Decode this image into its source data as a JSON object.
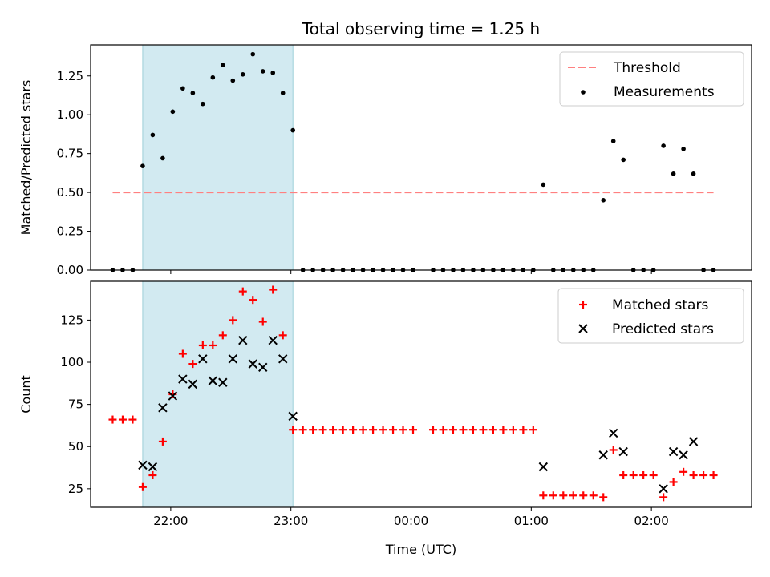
{
  "title": "Total observing time = 1.25 h",
  "colors": {
    "threshold": "#ff8080",
    "measurement": "#000000",
    "matched": "#ff0000",
    "predicted": "#000000",
    "observing_window": "#add8e6"
  },
  "chart_data": [
    {
      "type": "scatter",
      "name": "ratio-panel",
      "ylabel": "Matched/Predicted stars",
      "xlabel": "",
      "ylim": [
        0,
        1.45
      ],
      "xlim": [
        "21:20",
        "02:50"
      ],
      "yticks": [
        "0.00",
        "0.25",
        "0.50",
        "0.75",
        "1.00",
        "1.25"
      ],
      "ytick_values": [
        0,
        0.25,
        0.5,
        0.75,
        1.0,
        1.25
      ],
      "xticks": [
        "22:00",
        "23:00",
        "00:00",
        "01:00",
        "02:00"
      ],
      "xtick_labels_shown": false,
      "grid": false,
      "legend_position": "top-right",
      "shaded_interval": [
        "21:46",
        "23:01"
      ],
      "threshold": {
        "name": "Threshold",
        "style": "dashed",
        "value": 0.5,
        "x_range": [
          "21:31",
          "02:31"
        ]
      },
      "series": [
        {
          "name": "Measurements",
          "marker": "dot",
          "points": [
            [
              "21:31",
              0.0
            ],
            [
              "21:36",
              0.0
            ],
            [
              "21:41",
              0.0
            ],
            [
              "21:46",
              0.67
            ],
            [
              "21:51",
              0.87
            ],
            [
              "21:56",
              0.72
            ],
            [
              "22:01",
              1.02
            ],
            [
              "22:06",
              1.17
            ],
            [
              "22:11",
              1.14
            ],
            [
              "22:16",
              1.07
            ],
            [
              "22:21",
              1.24
            ],
            [
              "22:26",
              1.32
            ],
            [
              "22:31",
              1.22
            ],
            [
              "22:36",
              1.26
            ],
            [
              "22:41",
              1.39
            ],
            [
              "22:46",
              1.28
            ],
            [
              "22:51",
              1.27
            ],
            [
              "22:56",
              1.14
            ],
            [
              "23:01",
              0.9
            ],
            [
              "23:06",
              0.0
            ],
            [
              "23:11",
              0.0
            ],
            [
              "23:16",
              0.0
            ],
            [
              "23:21",
              0.0
            ],
            [
              "23:26",
              0.0
            ],
            [
              "23:31",
              0.0
            ],
            [
              "23:36",
              0.0
            ],
            [
              "23:41",
              0.0
            ],
            [
              "23:46",
              0.0
            ],
            [
              "23:51",
              0.0
            ],
            [
              "23:56",
              0.0
            ],
            [
              "00:01",
              0.0
            ],
            [
              "00:11",
              0.0
            ],
            [
              "00:16",
              0.0
            ],
            [
              "00:21",
              0.0
            ],
            [
              "00:26",
              0.0
            ],
            [
              "00:31",
              0.0
            ],
            [
              "00:36",
              0.0
            ],
            [
              "00:41",
              0.0
            ],
            [
              "00:46",
              0.0
            ],
            [
              "00:51",
              0.0
            ],
            [
              "00:56",
              0.0
            ],
            [
              "01:01",
              0.0
            ],
            [
              "01:06",
              0.55
            ],
            [
              "01:11",
              0.0
            ],
            [
              "01:16",
              0.0
            ],
            [
              "01:21",
              0.0
            ],
            [
              "01:26",
              0.0
            ],
            [
              "01:31",
              0.0
            ],
            [
              "01:36",
              0.45
            ],
            [
              "01:41",
              0.83
            ],
            [
              "01:46",
              0.71
            ],
            [
              "01:51",
              0.0
            ],
            [
              "01:56",
              0.0
            ],
            [
              "02:01",
              0.0
            ],
            [
              "02:06",
              0.8
            ],
            [
              "02:11",
              0.62
            ],
            [
              "02:16",
              0.78
            ],
            [
              "02:21",
              0.62
            ],
            [
              "02:26",
              0.0
            ],
            [
              "02:31",
              0.0
            ]
          ]
        }
      ]
    },
    {
      "type": "scatter",
      "name": "count-panel",
      "ylabel": "Count",
      "xlabel": "Time (UTC)",
      "ylim": [
        14,
        148
      ],
      "xlim": [
        "21:20",
        "02:50"
      ],
      "yticks": [
        "25",
        "50",
        "75",
        "100",
        "125"
      ],
      "ytick_values": [
        25,
        50,
        75,
        100,
        125
      ],
      "xticks": [
        "22:00",
        "23:00",
        "00:00",
        "01:00",
        "02:00"
      ],
      "xtick_labels_shown": true,
      "grid": false,
      "legend_position": "top-right",
      "shaded_interval": [
        "21:46",
        "23:01"
      ],
      "series": [
        {
          "name": "Matched stars",
          "marker": "plus",
          "points": [
            [
              "21:31",
              66
            ],
            [
              "21:36",
              66
            ],
            [
              "21:41",
              66
            ],
            [
              "21:46",
              26
            ],
            [
              "21:51",
              33
            ],
            [
              "21:56",
              53
            ],
            [
              "22:01",
              81
            ],
            [
              "22:06",
              105
            ],
            [
              "22:11",
              99
            ],
            [
              "22:16",
              110
            ],
            [
              "22:21",
              110
            ],
            [
              "22:26",
              116
            ],
            [
              "22:31",
              125
            ],
            [
              "22:36",
              142
            ],
            [
              "22:41",
              137
            ],
            [
              "22:46",
              124
            ],
            [
              "22:51",
              143
            ],
            [
              "22:56",
              116
            ],
            [
              "23:01",
              60
            ],
            [
              "23:06",
              60
            ],
            [
              "23:11",
              60
            ],
            [
              "23:16",
              60
            ],
            [
              "23:21",
              60
            ],
            [
              "23:26",
              60
            ],
            [
              "23:31",
              60
            ],
            [
              "23:36",
              60
            ],
            [
              "23:41",
              60
            ],
            [
              "23:46",
              60
            ],
            [
              "23:51",
              60
            ],
            [
              "23:56",
              60
            ],
            [
              "00:01",
              60
            ],
            [
              "00:11",
              60
            ],
            [
              "00:16",
              60
            ],
            [
              "00:21",
              60
            ],
            [
              "00:26",
              60
            ],
            [
              "00:31",
              60
            ],
            [
              "00:36",
              60
            ],
            [
              "00:41",
              60
            ],
            [
              "00:46",
              60
            ],
            [
              "00:51",
              60
            ],
            [
              "00:56",
              60
            ],
            [
              "01:01",
              60
            ],
            [
              "01:06",
              21
            ],
            [
              "01:11",
              21
            ],
            [
              "01:16",
              21
            ],
            [
              "01:21",
              21
            ],
            [
              "01:26",
              21
            ],
            [
              "01:31",
              21
            ],
            [
              "01:36",
              20
            ],
            [
              "01:41",
              48
            ],
            [
              "01:46",
              33
            ],
            [
              "01:51",
              33
            ],
            [
              "01:56",
              33
            ],
            [
              "02:01",
              33
            ],
            [
              "02:06",
              20
            ],
            [
              "02:11",
              29
            ],
            [
              "02:16",
              35
            ],
            [
              "02:21",
              33
            ],
            [
              "02:26",
              33
            ],
            [
              "02:31",
              33
            ]
          ]
        },
        {
          "name": "Predicted stars",
          "marker": "x",
          "points": [
            [
              "21:46",
              39
            ],
            [
              "21:51",
              38
            ],
            [
              "21:56",
              73
            ],
            [
              "22:01",
              80
            ],
            [
              "22:06",
              90
            ],
            [
              "22:11",
              87
            ],
            [
              "22:16",
              102
            ],
            [
              "22:21",
              89
            ],
            [
              "22:26",
              88
            ],
            [
              "22:31",
              102
            ],
            [
              "22:36",
              113
            ],
            [
              "22:41",
              99
            ],
            [
              "22:46",
              97
            ],
            [
              "22:51",
              113
            ],
            [
              "22:56",
              102
            ],
            [
              "23:01",
              68
            ],
            [
              "01:06",
              38
            ],
            [
              "01:36",
              45
            ],
            [
              "01:41",
              58
            ],
            [
              "01:46",
              47
            ],
            [
              "02:06",
              25
            ],
            [
              "02:11",
              47
            ],
            [
              "02:16",
              45
            ],
            [
              "02:21",
              53
            ]
          ]
        }
      ]
    }
  ]
}
